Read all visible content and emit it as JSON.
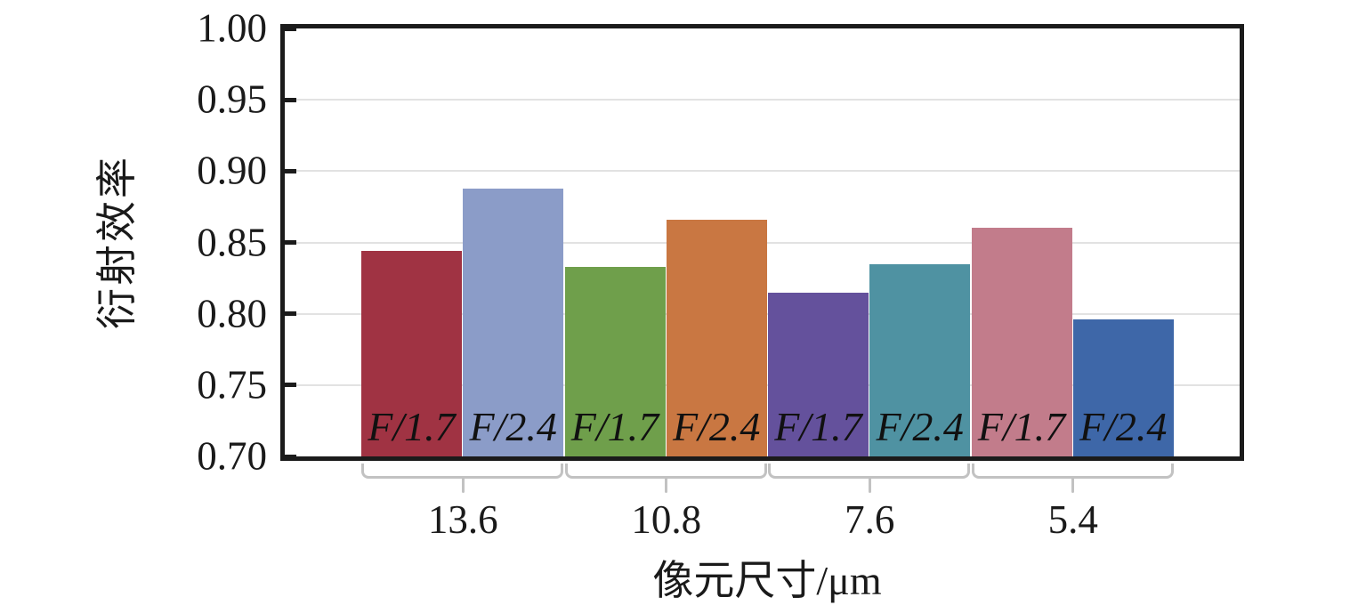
{
  "chart_data": {
    "type": "bar",
    "title": "",
    "ylabel": "衍射效率",
    "xlabel": "像元尺寸/μm",
    "ylim": [
      0.7,
      1.0
    ],
    "ytick_step": 0.05,
    "yticks": [
      "1.00",
      "0.95",
      "0.90",
      "0.85",
      "0.80",
      "0.75",
      "0.70"
    ],
    "grid": true,
    "legend_position": "none",
    "categories": [
      "13.6",
      "10.8",
      "7.6",
      "5.4"
    ],
    "series": [
      {
        "name": "F/1.7",
        "values": [
          0.844,
          0.833,
          0.815,
          0.86
        ]
      },
      {
        "name": "F/2.4",
        "values": [
          0.888,
          0.866,
          0.835,
          0.796
        ]
      }
    ],
    "bars": [
      {
        "group": "13.6",
        "label": "F/1.7",
        "value": 0.844,
        "color": "#a03343"
      },
      {
        "group": "13.6",
        "label": "F/2.4",
        "value": 0.888,
        "color": "#8b9cc8"
      },
      {
        "group": "10.8",
        "label": "F/1.7",
        "value": 0.833,
        "color": "#6f9f4b"
      },
      {
        "group": "10.8",
        "label": "F/2.4",
        "value": 0.866,
        "color": "#c97742"
      },
      {
        "group": "7.6",
        "label": "F/1.7",
        "value": 0.815,
        "color": "#64519c"
      },
      {
        "group": "7.6",
        "label": "F/2.4",
        "value": 0.835,
        "color": "#4f92a2"
      },
      {
        "group": "5.4",
        "label": "F/1.7",
        "value": 0.86,
        "color": "#c27c8b"
      },
      {
        "group": "5.4",
        "label": "F/2.4",
        "value": 0.796,
        "color": "#3e67a8"
      }
    ],
    "colors": {
      "axis": "#1b1b1b",
      "gridline": "#e2e2e2",
      "bracket": "#c2c2c2",
      "text": "#1a1a1a",
      "background": "#ffffff"
    }
  }
}
